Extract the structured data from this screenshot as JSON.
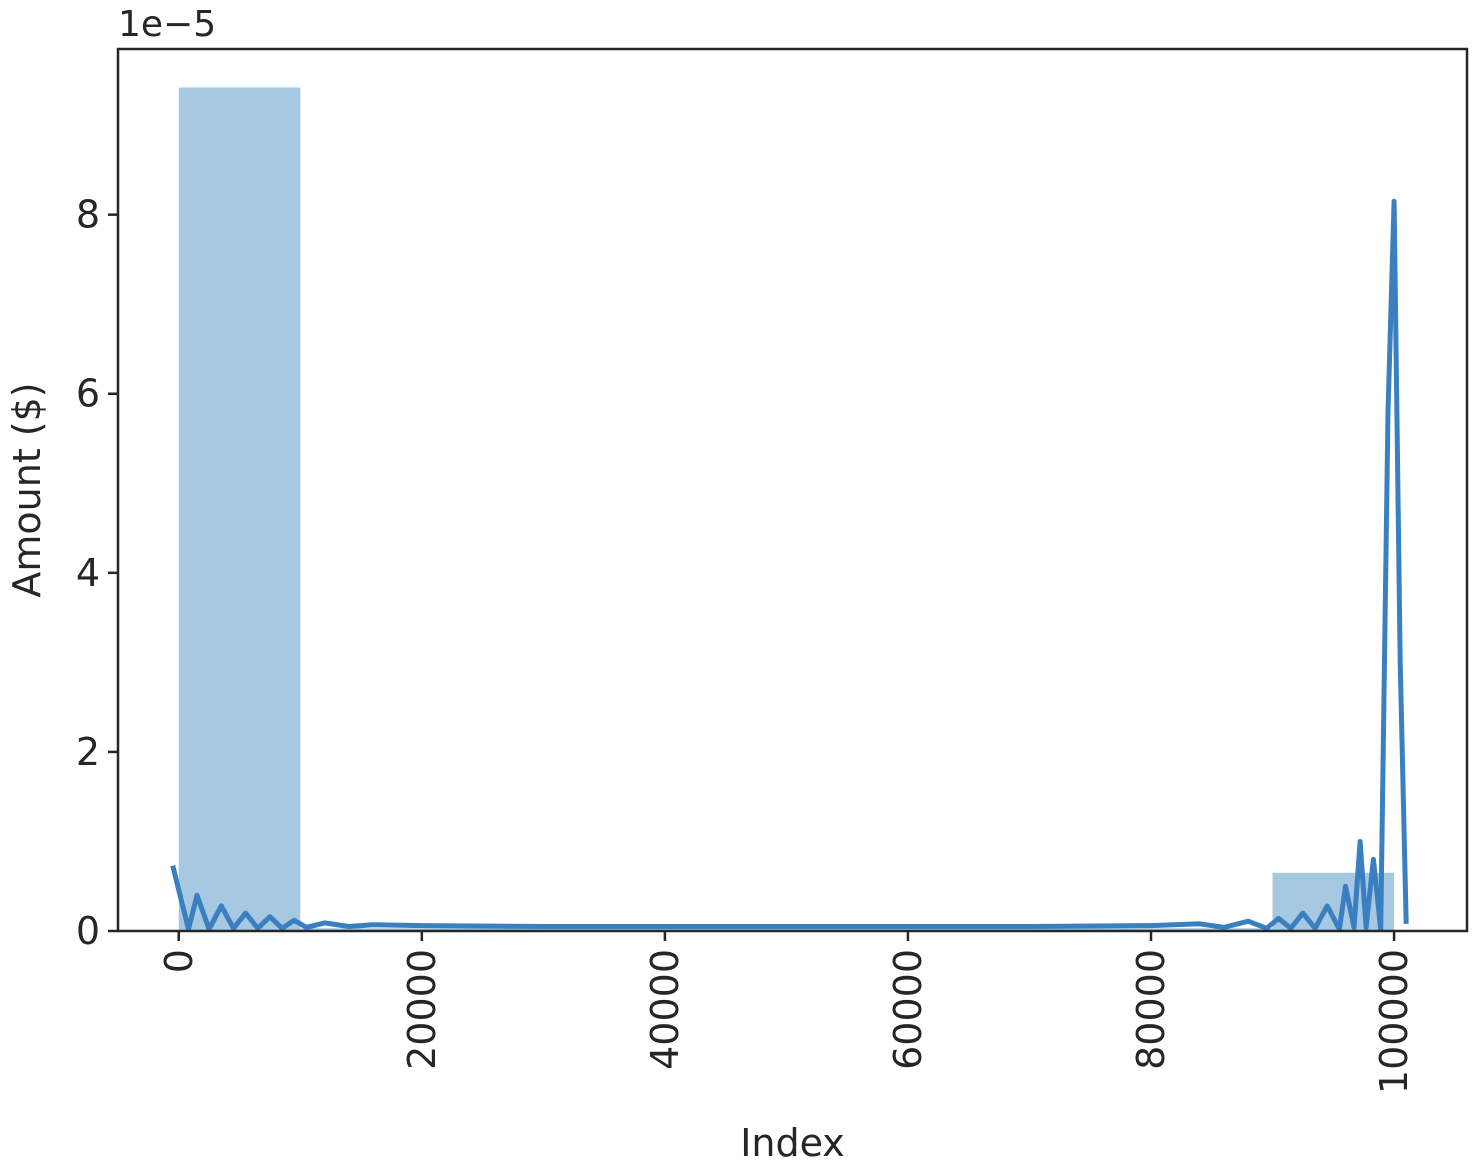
{
  "chart_data": {
    "type": "bar",
    "xlabel": "Index",
    "ylabel": "Amount ($)",
    "y_offset_text": "1e−5",
    "xlim": [
      -5000,
      106000
    ],
    "ylim": [
      0,
      9.85e-05
    ],
    "x_ticks": [
      0,
      20000,
      40000,
      60000,
      80000,
      100000
    ],
    "x_tick_labels": [
      "0",
      "20000",
      "40000",
      "60000",
      "80000",
      "100000"
    ],
    "x_tick_rotation": 90,
    "y_ticks": [
      0,
      2e-05,
      4e-05,
      6e-05,
      8e-05
    ],
    "y_tick_labels": [
      "0",
      "2",
      "4",
      "6",
      "8"
    ],
    "grid": false,
    "colors": {
      "bar": "#a6c8e0",
      "line": "#3a7fbf",
      "axis": "#262626"
    },
    "histogram_bins": [
      {
        "x0": 0,
        "x1": 10000,
        "value": 9.42e-05
      },
      {
        "x0": 10000,
        "x1": 20000,
        "value": 3e-07
      },
      {
        "x0": 20000,
        "x1": 30000,
        "value": 3e-07
      },
      {
        "x0": 30000,
        "x1": 40000,
        "value": 3e-07
      },
      {
        "x0": 40000,
        "x1": 50000,
        "value": 3e-07
      },
      {
        "x0": 50000,
        "x1": 60000,
        "value": 3e-07
      },
      {
        "x0": 60000,
        "x1": 70000,
        "value": 3e-07
      },
      {
        "x0": 70000,
        "x1": 80000,
        "value": 3e-07
      },
      {
        "x0": 80000,
        "x1": 90000,
        "value": 3e-07
      },
      {
        "x0": 90000,
        "x1": 100000,
        "value": 6.5e-06
      }
    ],
    "kde_line": {
      "x": [
        -500,
        800,
        1500,
        2500,
        3500,
        4500,
        5500,
        6500,
        7500,
        8500,
        9500,
        10500,
        12000,
        14000,
        16000,
        20000,
        30000,
        40000,
        50000,
        60000,
        70000,
        80000,
        84000,
        86000,
        88000,
        89500,
        90500,
        91500,
        92500,
        93500,
        94500,
        95500,
        96000,
        96700,
        97200,
        97700,
        98300,
        98900,
        99500,
        100000,
        100500,
        101000
      ],
      "y": [
        7.3e-06,
        2e-07,
        4e-06,
        2e-07,
        2.8e-06,
        3e-07,
        2e-06,
        3e-07,
        1.6e-06,
        3e-07,
        1.2e-06,
        4e-07,
        9e-07,
        5e-07,
        7e-07,
        6e-07,
        5e-07,
        5e-07,
        5e-07,
        5e-07,
        5e-07,
        6e-07,
        8e-07,
        4e-07,
        1.1e-06,
        3e-07,
        1.4e-06,
        3e-07,
        2e-06,
        3e-07,
        2.8e-06,
        2e-07,
        5e-06,
        4e-07,
        1e-05,
        4e-07,
        8e-06,
        2e-07,
        5.8e-05,
        8.15e-05,
        3e-05,
        8e-07
      ]
    }
  }
}
